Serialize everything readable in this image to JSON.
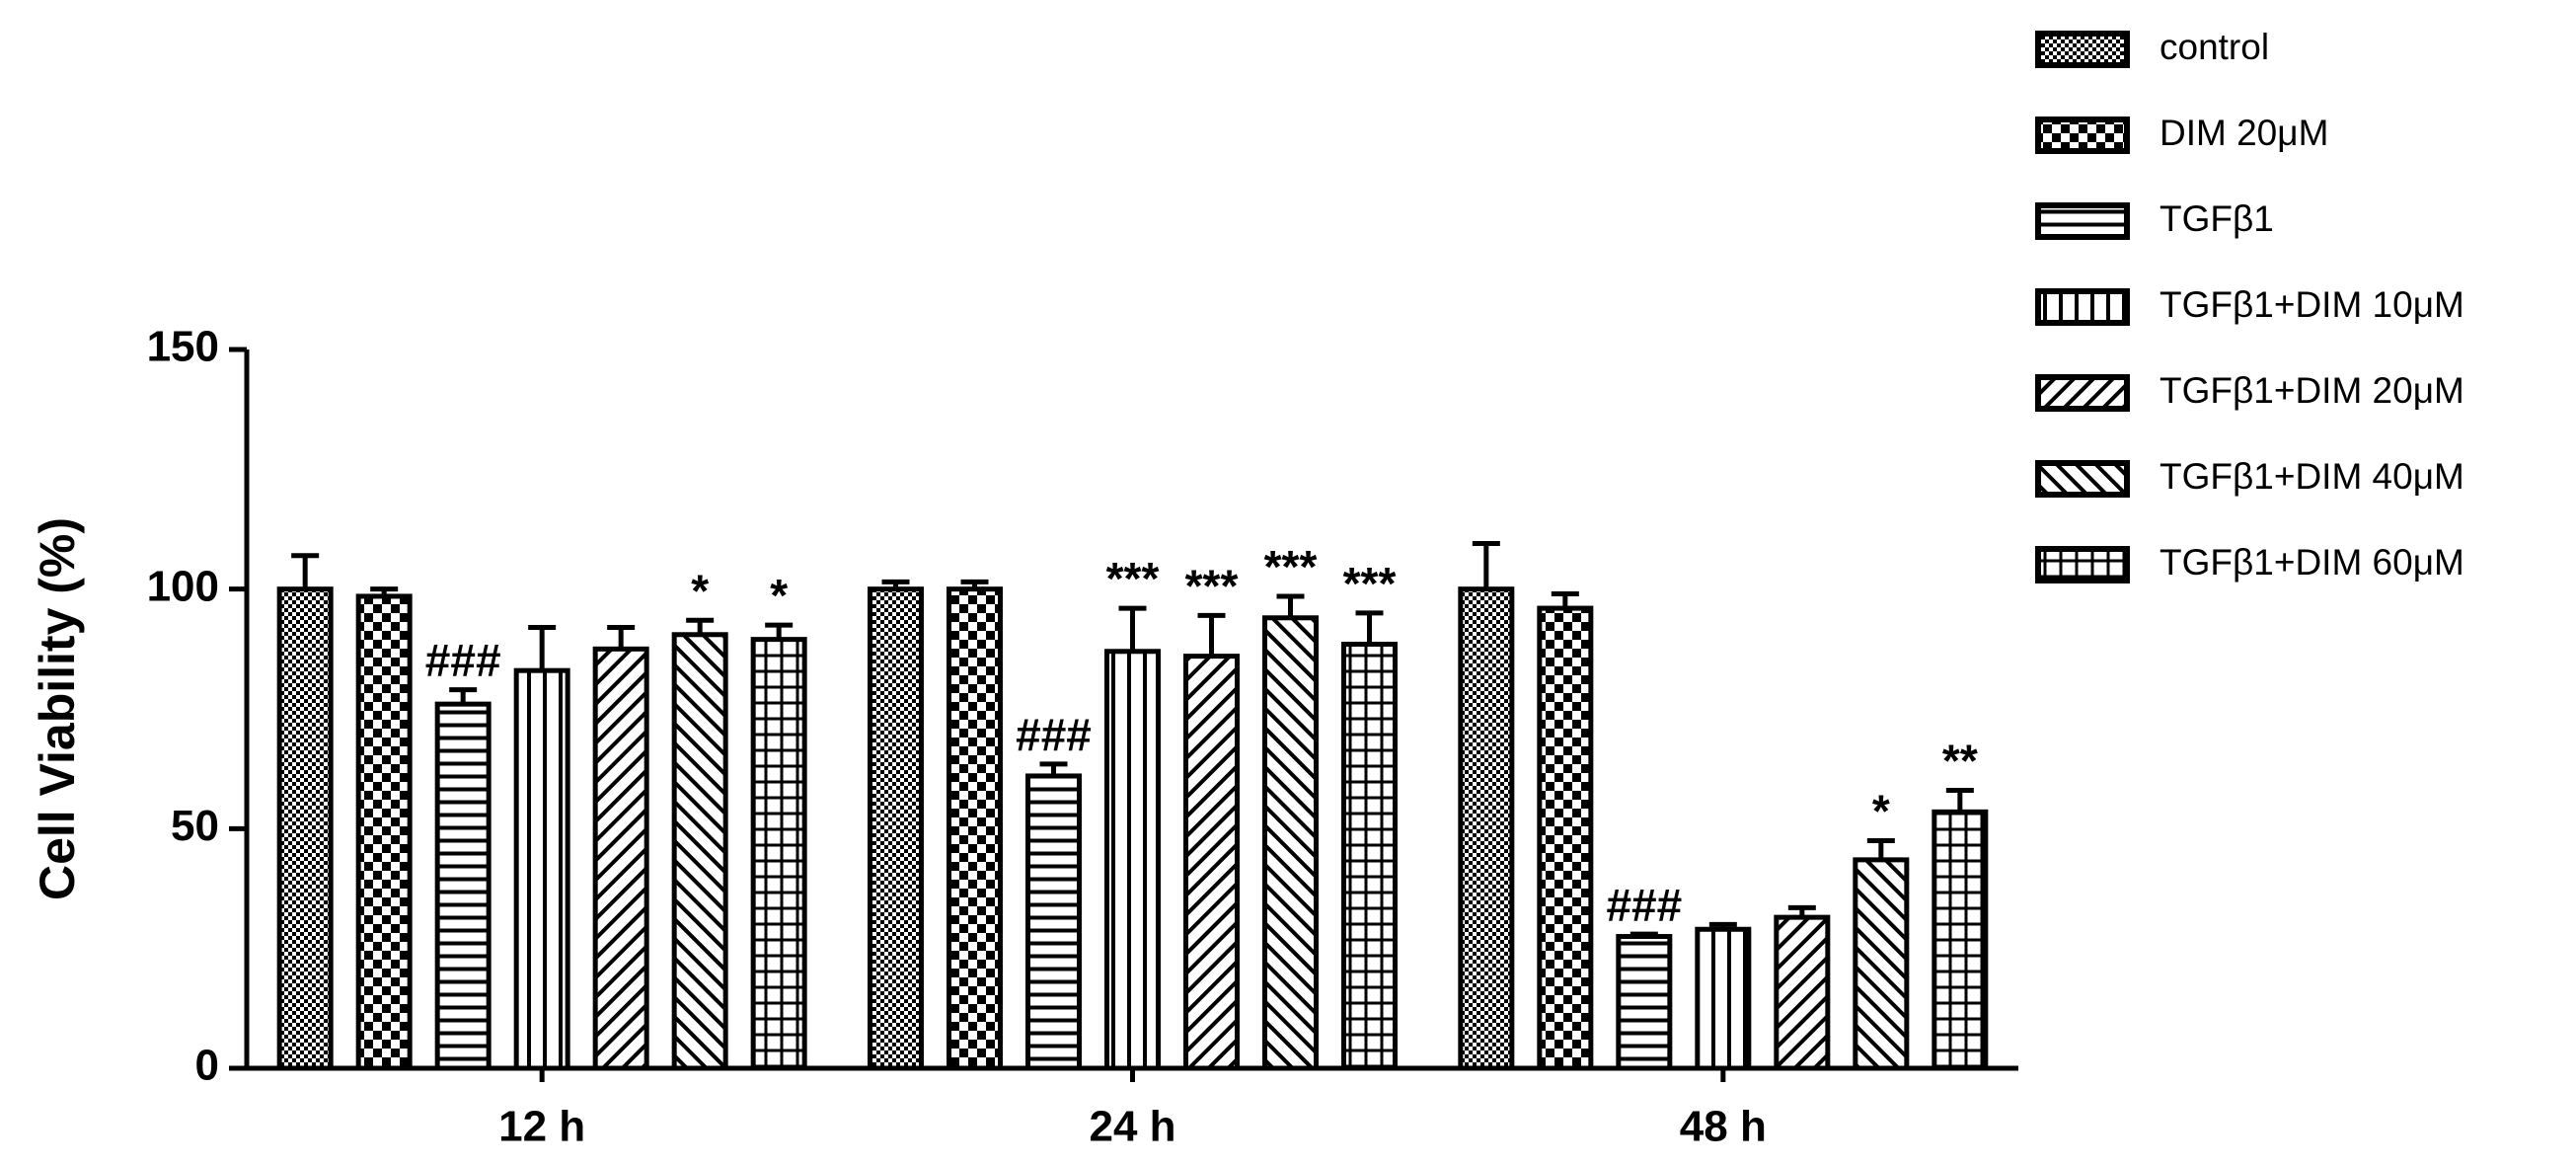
{
  "chart_data": {
    "type": "bar",
    "y_label": "Cell Viability (%)",
    "categories": [
      "12 h",
      "24 h",
      "48 h"
    ],
    "ylim": [
      0,
      150
    ],
    "yticks": [
      0,
      50,
      100,
      150
    ],
    "series": [
      {
        "name": "control",
        "color": "#000000",
        "pattern": "checker-fine",
        "values": [
          100,
          100,
          100
        ],
        "errors": [
          7,
          1.5,
          9.5
        ],
        "annotations": [
          null,
          null,
          null
        ]
      },
      {
        "name": "DIM 20μM",
        "color": "#000000",
        "pattern": "checker",
        "values": [
          98.5,
          100,
          96
        ],
        "errors": [
          1.5,
          1.5,
          3
        ],
        "annotations": [
          null,
          null,
          null
        ]
      },
      {
        "name": "TGFβ1",
        "color": "#000000",
        "pattern": "hlines",
        "values": [
          76,
          61,
          27.5
        ],
        "errors": [
          3,
          2.5,
          0.5
        ],
        "annotations": [
          "###",
          "###",
          "###"
        ]
      },
      {
        "name": "TGFβ1+DIM 10μM",
        "color": "#000000",
        "pattern": "vlines",
        "values": [
          83,
          87,
          29
        ],
        "errors": [
          9,
          9,
          1
        ],
        "annotations": [
          null,
          "***",
          null
        ]
      },
      {
        "name": "TGFβ1+DIM 20μM",
        "color": "#000000",
        "pattern": "diag-right",
        "values": [
          87.5,
          86,
          31.5
        ],
        "errors": [
          4.5,
          8.5,
          2
        ],
        "annotations": [
          null,
          "***",
          null
        ]
      },
      {
        "name": "TGFβ1+DIM 40μM",
        "color": "#000000",
        "pattern": "diag-left",
        "values": [
          90.5,
          94,
          43.5
        ],
        "errors": [
          3,
          4.5,
          4
        ],
        "annotations": [
          "*",
          "***",
          "*"
        ]
      },
      {
        "name": "TGFβ1+DIM 60μM",
        "color": "#000000",
        "pattern": "grid",
        "values": [
          89.5,
          88.5,
          53.5
        ],
        "errors": [
          3,
          6.5,
          4.5
        ],
        "annotations": [
          "*",
          "***",
          "**"
        ]
      }
    ]
  }
}
